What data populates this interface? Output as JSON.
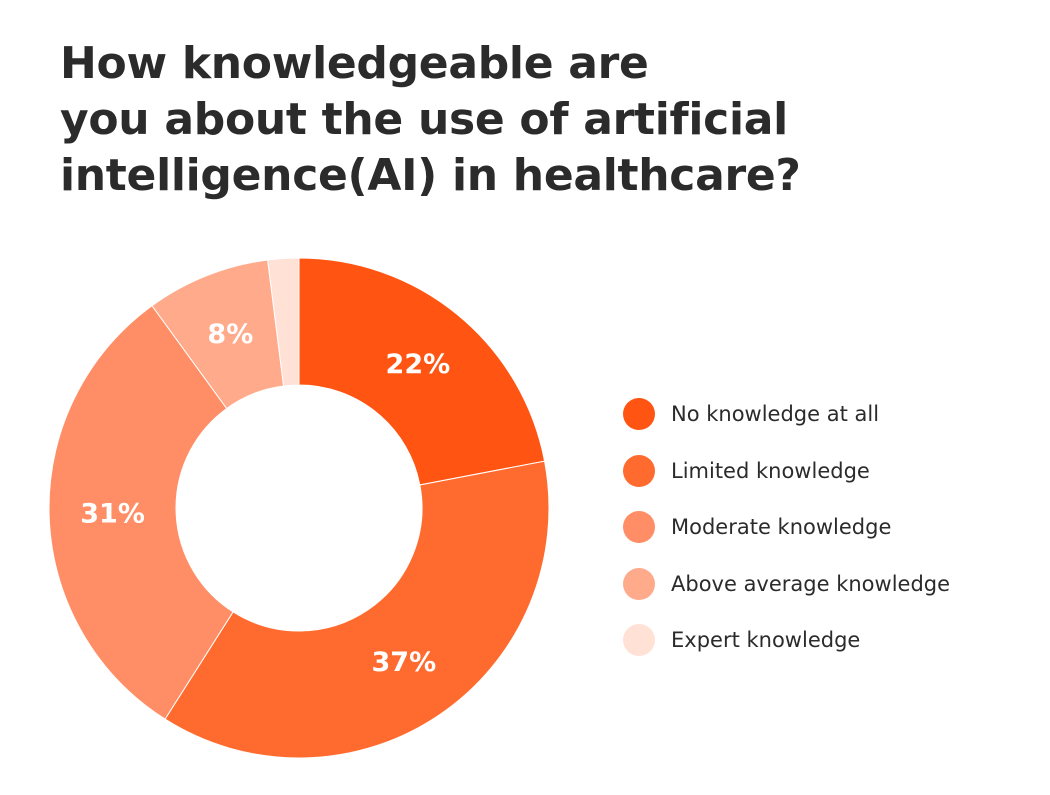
{
  "title_lines": [
    "How knowledgeable are",
    "you about the use of artificial",
    "intelligence(AI) in healthcare?"
  ],
  "chart_data": {
    "type": "pie",
    "donut": true,
    "title": "How knowledgeable are you about the use of artificial intelligence(AI) in healthcare?",
    "categories": [
      "No knowledge at all",
      "Limited knowledge",
      "Moderate knowledge",
      "Above average knowledge",
      "Expert knowledge"
    ],
    "values": [
      22,
      37,
      31,
      8,
      2
    ],
    "data_labels": [
      "22%",
      "37%",
      "31%",
      "8%",
      ""
    ],
    "colors": [
      "#FF5412",
      "#FF6B2F",
      "#FF8E66",
      "#FFAA8A",
      "#FFE1D6"
    ],
    "legend_position": "right"
  }
}
